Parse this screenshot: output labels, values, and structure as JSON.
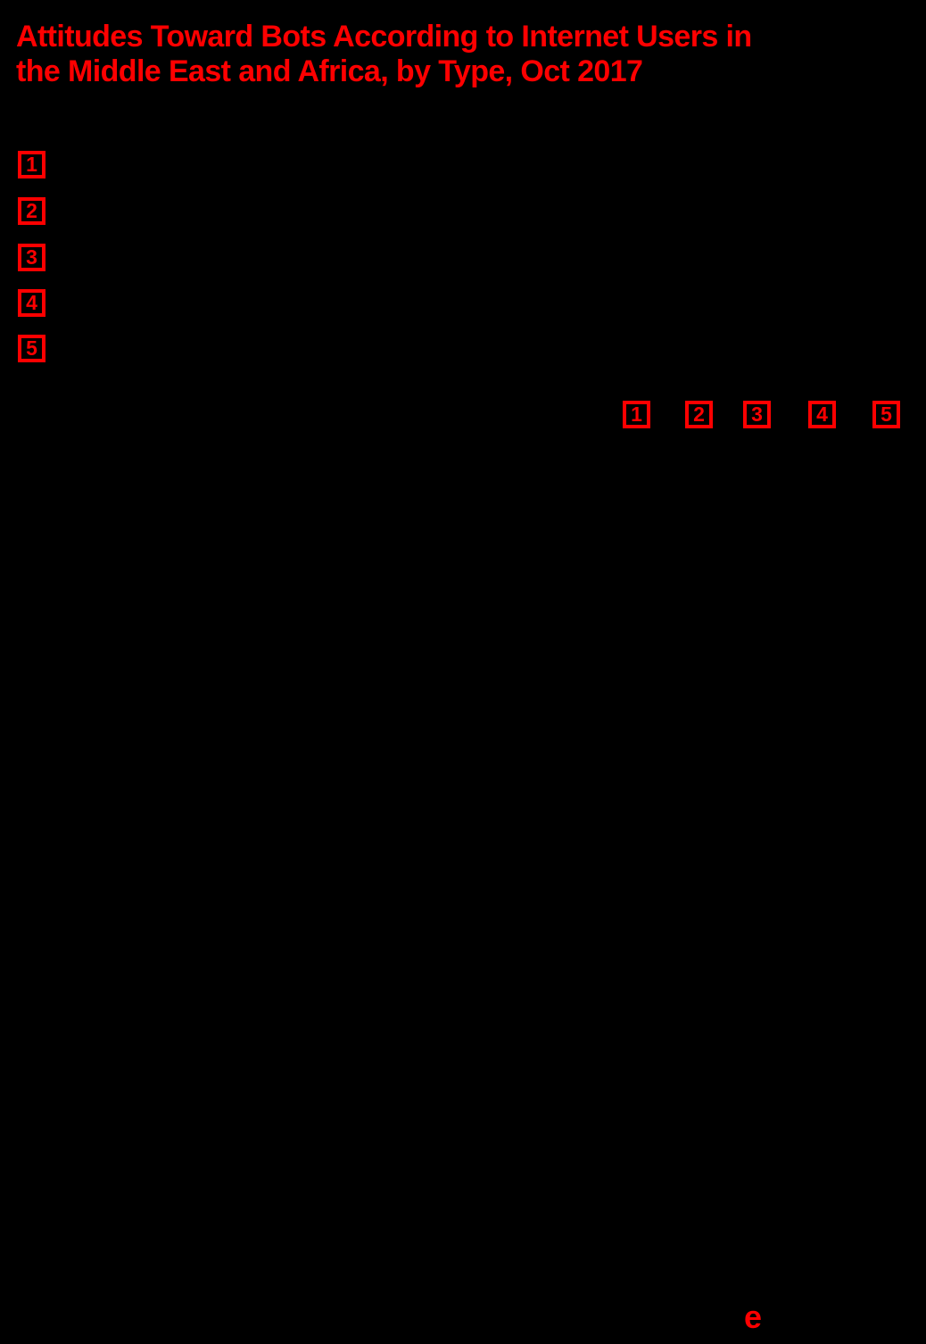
{
  "colors": {
    "background": "#000000",
    "accent_red": "#fe0000"
  },
  "title": {
    "line1": "Attitudes Toward Bots According to Internet Users in",
    "line2": "the Middle East and Africa, by Type, Oct 2017"
  },
  "legend": {
    "markers": [
      "1",
      "2",
      "3",
      "4",
      "5"
    ]
  },
  "table": {
    "column_headers": [
      "1",
      "2",
      "3",
      "4",
      "5"
    ]
  },
  "logo": {
    "mark": "e"
  },
  "chart_data": {
    "type": "table",
    "title": "Attitudes Toward Bots According to Internet Users in the Middle East and Africa, by Type, Oct 2017",
    "legend_markers": [
      "1",
      "2",
      "3",
      "4",
      "5"
    ],
    "column_headers": [
      "1",
      "2",
      "3",
      "4",
      "5"
    ]
  }
}
